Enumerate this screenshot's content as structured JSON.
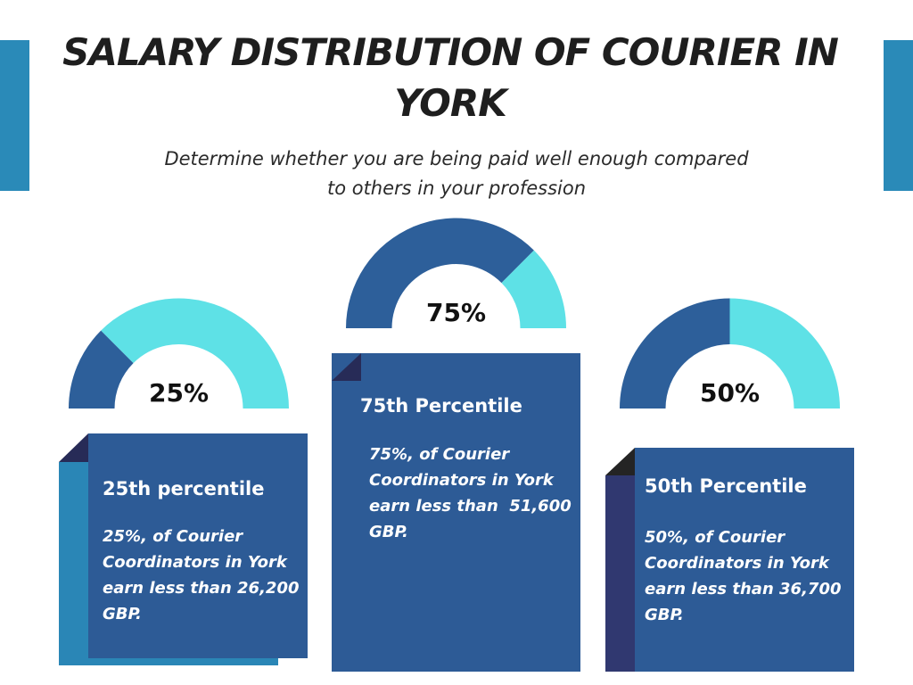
{
  "header": {
    "title": "SALARY DISTRIBUTION OF COURIER IN YORK",
    "subtitle": "Determine whether you are being paid well enough compared to others in your profession"
  },
  "colors": {
    "dark_blue": "#2d5f9a",
    "light_cyan": "#5ee1e6",
    "side_bar": "#2a8ab8",
    "card_blue": "#2d5b96",
    "card_shadow_teal": "#2a86b6",
    "card_shadow_navy": "#303870",
    "fold_dark": "#272b57",
    "fold_black": "#242424"
  },
  "chart_data": [
    {
      "type": "pie",
      "style": "semi-donut gauge",
      "value_percent": 25,
      "label": "25%",
      "heading": "25th percentile",
      "description": "25%, of Courier Coordinators in York earn less than 26,200 GBP.",
      "salary_gbp": 26200
    },
    {
      "type": "pie",
      "style": "semi-donut gauge",
      "value_percent": 75,
      "label": "75%",
      "heading": "75th Percentile",
      "description": "75%, of Courier Coordinators in York earn less than  51,600 GBP.",
      "salary_gbp": 51600
    },
    {
      "type": "pie",
      "style": "semi-donut gauge",
      "value_percent": 50,
      "label": "50%",
      "heading": "50th Percentile",
      "description": "50%, of Courier Coordinators in York earn less than 36,700 GBP.",
      "salary_gbp": 36700
    }
  ]
}
